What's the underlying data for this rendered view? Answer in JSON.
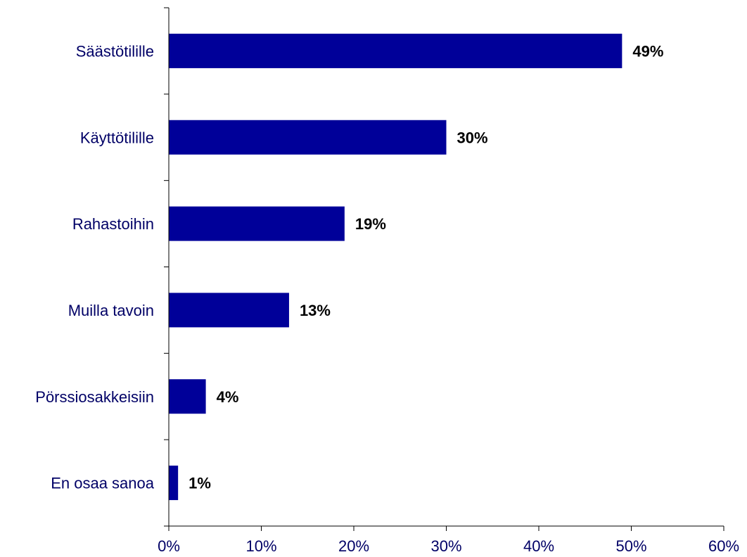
{
  "chart_data": {
    "type": "bar",
    "orientation": "horizontal",
    "title": "",
    "xlabel": "",
    "ylabel": "",
    "categories": [
      "Säästötilille",
      "Käyttötilille",
      "Rahastoihin",
      "Muilla tavoin",
      "Pörssiosakkeisiin",
      "En osaa sanoa"
    ],
    "values": [
      49,
      30,
      19,
      13,
      4,
      1
    ],
    "value_labels": [
      "49%",
      "30%",
      "19%",
      "13%",
      "4%",
      "1%"
    ],
    "xlim": [
      0,
      60
    ],
    "x_ticks": [
      0,
      10,
      20,
      30,
      40,
      50,
      60
    ],
    "x_tick_labels": [
      "0%",
      "10%",
      "20%",
      "30%",
      "40%",
      "50%",
      "60%"
    ],
    "grid": false,
    "legend": "none",
    "colors": {
      "bar": "#000099",
      "axis": "#000000",
      "category_label": "#000066",
      "tick_label": "#000066",
      "value_label": "#000000"
    }
  }
}
